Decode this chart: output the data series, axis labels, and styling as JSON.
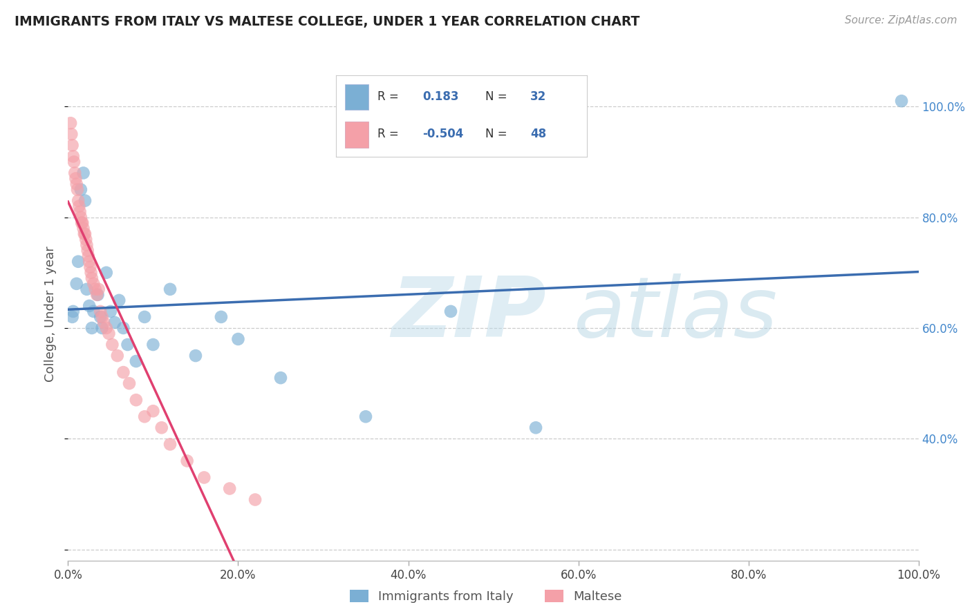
{
  "title": "IMMIGRANTS FROM ITALY VS MALTESE COLLEGE, UNDER 1 YEAR CORRELATION CHART",
  "source_text": "Source: ZipAtlas.com",
  "ylabel": "College, Under 1 year",
  "watermark_zip": "ZIP",
  "watermark_atlas": "atlas",
  "legend1_label": "Immigrants from Italy",
  "legend2_label": "Maltese",
  "R1": 0.183,
  "N1": 32,
  "R2": -0.504,
  "N2": 48,
  "blue_color": "#7BAFD4",
  "pink_color": "#F4A0A8",
  "blue_line_color": "#3B6DB0",
  "pink_line_color": "#E04070",
  "title_color": "#222222",
  "axis_label_color": "#555555",
  "right_tick_color": "#4488CC",
  "grid_color": "#CCCCCC",
  "xlim": [
    0.0,
    1.0
  ],
  "ylim": [
    0.18,
    1.07
  ],
  "blue_x": [
    0.005,
    0.006,
    0.01,
    0.012,
    0.015,
    0.018,
    0.02,
    0.022,
    0.025,
    0.028,
    0.03,
    0.035,
    0.038,
    0.04,
    0.045,
    0.05,
    0.055,
    0.06,
    0.065,
    0.07,
    0.08,
    0.09,
    0.1,
    0.12,
    0.15,
    0.18,
    0.2,
    0.25,
    0.35,
    0.45,
    0.55,
    0.98
  ],
  "blue_y": [
    0.62,
    0.63,
    0.68,
    0.72,
    0.85,
    0.88,
    0.83,
    0.67,
    0.64,
    0.6,
    0.63,
    0.66,
    0.62,
    0.6,
    0.7,
    0.63,
    0.61,
    0.65,
    0.6,
    0.57,
    0.54,
    0.62,
    0.57,
    0.67,
    0.55,
    0.62,
    0.58,
    0.51,
    0.44,
    0.63,
    0.42,
    1.01
  ],
  "pink_x": [
    0.003,
    0.004,
    0.005,
    0.006,
    0.007,
    0.008,
    0.009,
    0.01,
    0.011,
    0.012,
    0.013,
    0.014,
    0.015,
    0.016,
    0.017,
    0.018,
    0.019,
    0.02,
    0.021,
    0.022,
    0.023,
    0.024,
    0.025,
    0.026,
    0.027,
    0.028,
    0.03,
    0.032,
    0.034,
    0.036,
    0.038,
    0.04,
    0.042,
    0.045,
    0.048,
    0.052,
    0.058,
    0.065,
    0.072,
    0.08,
    0.09,
    0.1,
    0.11,
    0.12,
    0.14,
    0.16,
    0.19,
    0.22
  ],
  "pink_y": [
    0.97,
    0.95,
    0.93,
    0.91,
    0.9,
    0.88,
    0.87,
    0.86,
    0.85,
    0.83,
    0.82,
    0.81,
    0.8,
    0.79,
    0.79,
    0.78,
    0.77,
    0.77,
    0.76,
    0.75,
    0.74,
    0.73,
    0.72,
    0.71,
    0.7,
    0.69,
    0.68,
    0.67,
    0.66,
    0.67,
    0.63,
    0.62,
    0.61,
    0.6,
    0.59,
    0.57,
    0.55,
    0.52,
    0.5,
    0.47,
    0.44,
    0.45,
    0.42,
    0.39,
    0.36,
    0.33,
    0.31,
    0.29
  ]
}
